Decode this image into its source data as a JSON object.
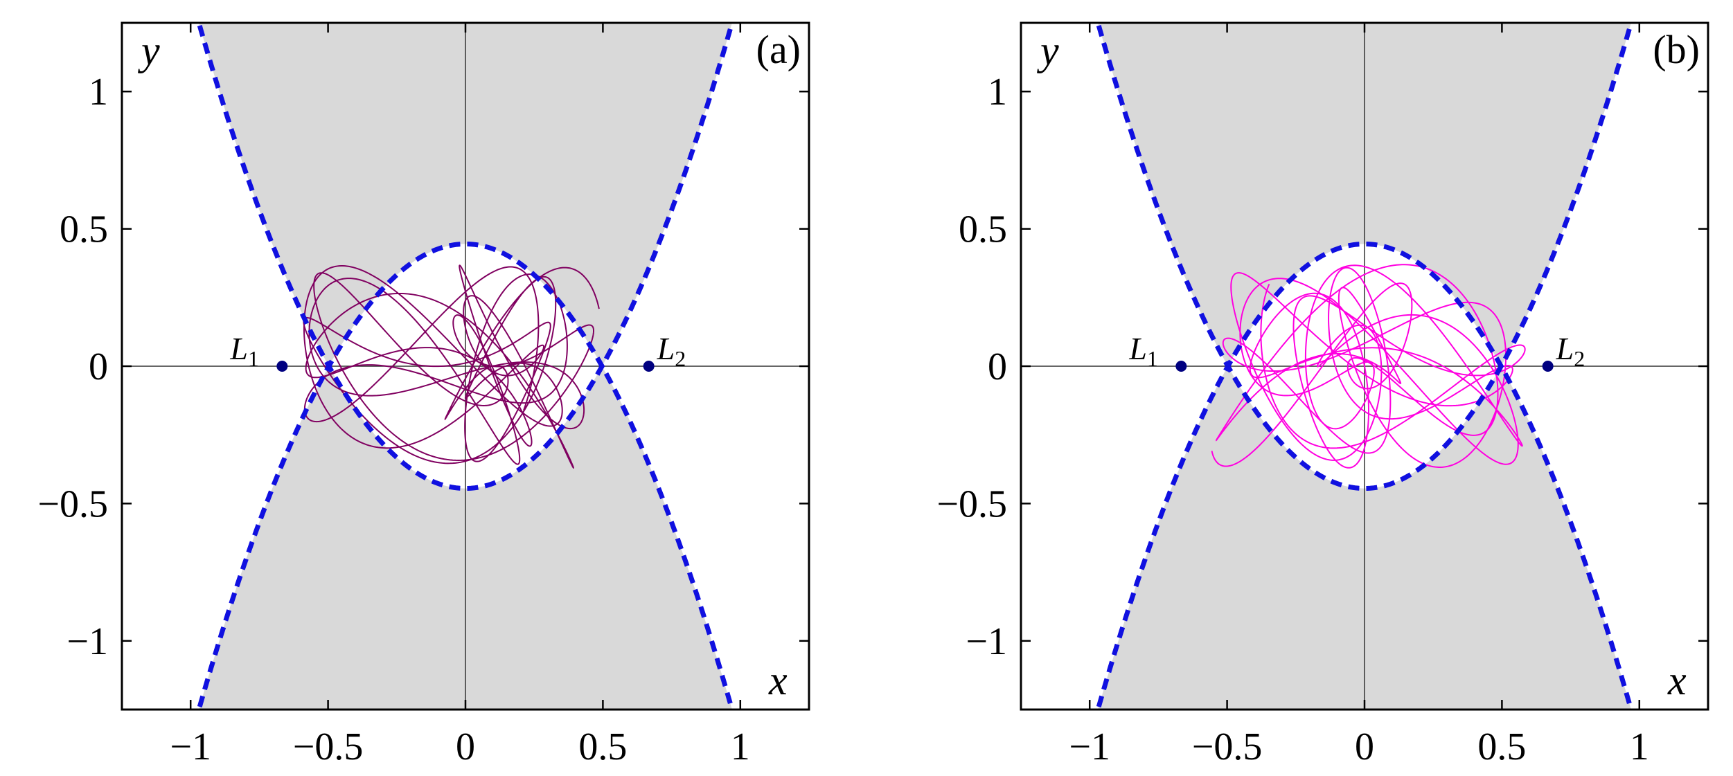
{
  "chart_data": [
    {
      "type": "line",
      "panel_label": "(a)",
      "xlabel": "x",
      "ylabel": "y",
      "xlim": [
        -1.25,
        1.25
      ],
      "ylim": [
        -1.25,
        1.25
      ],
      "xticks": [
        -1,
        -0.5,
        0,
        0.5,
        1
      ],
      "xtick_labels": [
        "−1",
        "−0.5",
        "0",
        "0.5",
        "1"
      ],
      "yticks": [
        -1,
        -0.5,
        0,
        0.5,
        1
      ],
      "ytick_labels": [
        "−1",
        "−0.5",
        "0",
        "0.5",
        "1"
      ],
      "forbidden_region": "gray (Hill region boundary shown as blue dashed zero-velocity curves)",
      "lagrange_points": [
        {
          "name": "L",
          "sub": "1",
          "x": -0.667,
          "y": 0
        },
        {
          "name": "L",
          "sub": "2",
          "x": 0.667,
          "y": 0
        }
      ],
      "zero_velocity_curve": {
        "y_max": 0.445,
        "x_at_y_limit": 0.97,
        "color": "#1010e0"
      },
      "orbit": {
        "color": "#800060",
        "params": {
          "amp_x": 0.62,
          "amp_y": 0.37,
          "fx": 1,
          "fy": 1.72,
          "phase": 0.6
        }
      },
      "grid": false
    },
    {
      "type": "line",
      "panel_label": "(b)",
      "xlabel": "x",
      "ylabel": "y",
      "xlim": [
        -1.25,
        1.25
      ],
      "ylim": [
        -1.25,
        1.25
      ],
      "xticks": [
        -1,
        -0.5,
        0,
        0.5,
        1
      ],
      "xtick_labels": [
        "−1",
        "−0.5",
        "0",
        "0.5",
        "1"
      ],
      "yticks": [
        -1,
        -0.5,
        0,
        0.5,
        1
      ],
      "ytick_labels": [
        "−1",
        "−0.5",
        "0",
        "0.5",
        "1"
      ],
      "forbidden_region": "gray (Hill region boundary shown as blue dashed zero-velocity curves)",
      "lagrange_points": [
        {
          "name": "L",
          "sub": "1",
          "x": -0.667,
          "y": 0
        },
        {
          "name": "L",
          "sub": "2",
          "x": 0.667,
          "y": 0
        }
      ],
      "zero_velocity_curve": {
        "y_max": 0.445,
        "x_at_y_limit": 0.97,
        "color": "#1010e0"
      },
      "orbit": {
        "color": "#ff00e0",
        "params": {
          "amp_x": 0.62,
          "amp_y": 0.37,
          "fx": 1,
          "fy": 1.72,
          "phase": 2.2
        }
      },
      "grid": false
    }
  ]
}
